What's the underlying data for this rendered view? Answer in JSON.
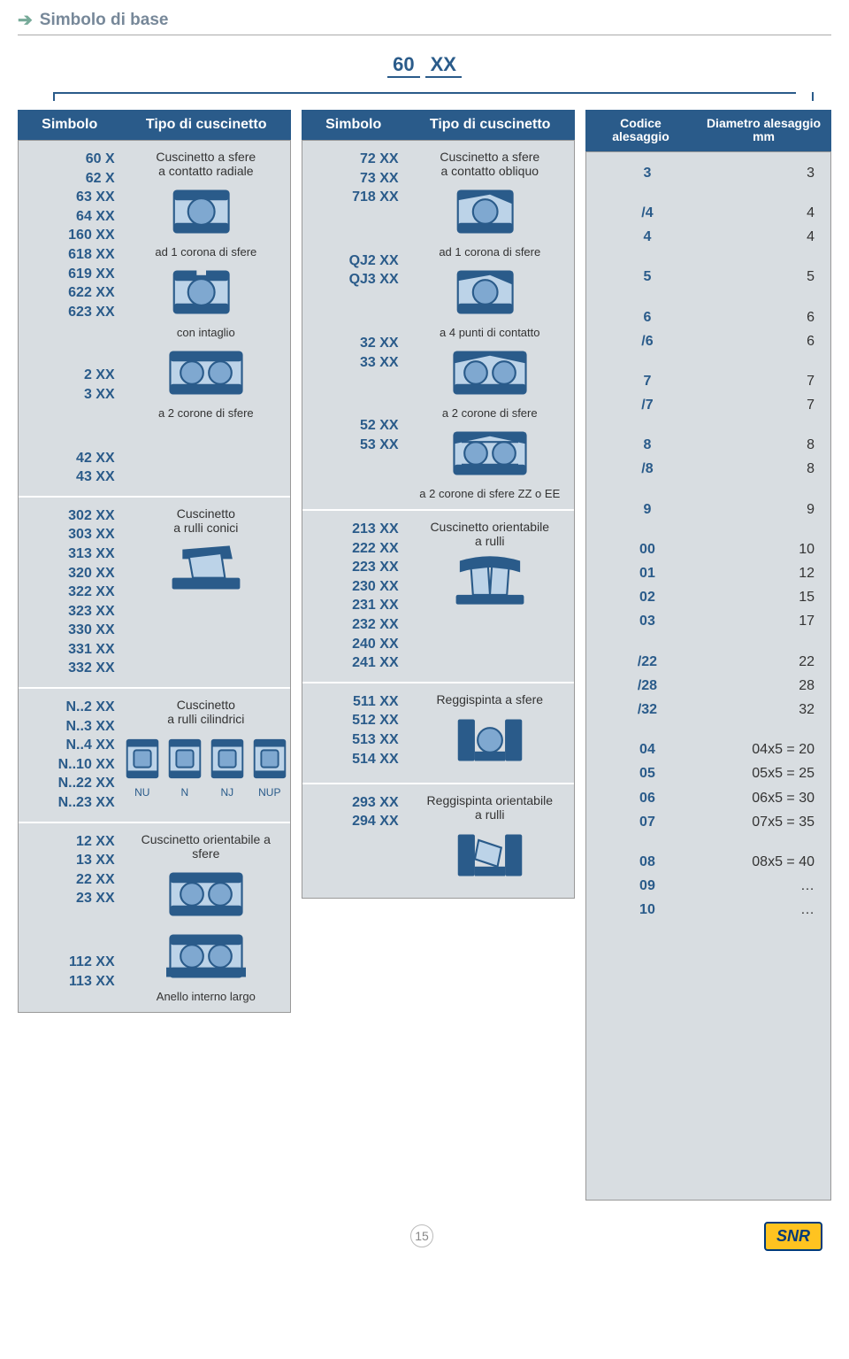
{
  "header": {
    "title": "Simbolo di base"
  },
  "topcode": {
    "a": "60",
    "b": "XX"
  },
  "col_headers": {
    "simbolo": "Simbolo",
    "tipo": "Tipo di cuscinetto",
    "codice": "Codice alesaggio",
    "diametro": "Diametro alesaggio mm"
  },
  "colors": {
    "header_bg": "#2a5b8a",
    "panel_bg": "#d8dde1",
    "sym_color": "#2a5b8a",
    "bearing_stroke": "#2a5b8a",
    "bearing_fill": "#bcd3e8"
  },
  "col1": [
    {
      "groups": [
        {
          "syms": [
            "60 X",
            "62 X",
            "63 XX",
            "64 XX",
            "160 XX",
            "618 XX",
            "619 XX",
            "622 XX",
            "623 XX"
          ],
          "title": "Cuscinetto a sfere\na contatto radiale",
          "icon": "ball1",
          "sub": "ad 1 corona di sfere"
        },
        {
          "syms": [
            "2 XX",
            "3 XX"
          ],
          "title": "",
          "icon": "ball1g",
          "sub": "con intaglio"
        },
        {
          "syms": [
            "42 XX",
            "43 XX"
          ],
          "title": "",
          "icon": "ball2",
          "sub": "a 2 corone di sfere"
        }
      ]
    },
    {
      "groups": [
        {
          "syms": [
            "302 XX",
            "303 XX",
            "313 XX",
            "320 XX",
            "322 XX",
            "323 XX",
            "330 XX",
            "331 XX",
            "332 XX"
          ],
          "title": "Cuscinetto\na rulli conici",
          "icon": "taper",
          "sub": ""
        }
      ]
    },
    {
      "groups": [
        {
          "syms": [
            "N..2 XX",
            "N..3 XX",
            "N..4 XX",
            "N..10 XX",
            "N..22 XX",
            "N..23 XX"
          ],
          "title": "Cuscinetto\na rulli cilindrici",
          "icon": "cylrow",
          "sub": "",
          "caps": [
            "NU",
            "N",
            "NJ",
            "NUP"
          ]
        }
      ]
    },
    {
      "groups": [
        {
          "syms": [
            "12 XX",
            "13 XX",
            "22 XX",
            "23 XX"
          ],
          "title": "Cuscinetto orientabile a sfere",
          "icon": "ball2",
          "sub": ""
        },
        {
          "syms": [
            "112 XX",
            "113 XX"
          ],
          "title": "",
          "icon": "ball2w",
          "sub": "Anello interno largo"
        }
      ]
    }
  ],
  "col2": [
    {
      "groups": [
        {
          "syms": [
            "72 XX",
            "73 XX",
            "718 XX"
          ],
          "title": "Cuscinetto a sfere\na contatto obliquo",
          "icon": "angular1",
          "sub": "ad 1 corona di sfere"
        },
        {
          "syms": [
            "QJ2 XX",
            "QJ3 XX"
          ],
          "title": "",
          "icon": "angular1",
          "sub": "a 4 punti di contatto"
        },
        {
          "syms": [
            "32 XX",
            "33 XX"
          ],
          "title": "",
          "icon": "angular2",
          "sub": "a 2 corone di sfere"
        },
        {
          "syms": [
            "52 XX",
            "53 XX"
          ],
          "title": "",
          "icon": "angular2s",
          "sub": "a 2 corone di sfere ZZ o EE"
        }
      ]
    },
    {
      "groups": [
        {
          "syms": [
            "213 XX",
            "222 XX",
            "223 XX",
            "230 XX",
            "231 XX",
            "232 XX",
            "240 XX",
            "241 XX"
          ],
          "title": "Cuscinetto orientabile\na rulli",
          "icon": "spherical",
          "sub": ""
        }
      ]
    },
    {
      "groups": [
        {
          "syms": [
            "511 XX",
            "512 XX",
            "513 XX",
            "514 XX"
          ],
          "title": "Reggispinta a sfere",
          "icon": "thrust",
          "sub": ""
        }
      ]
    },
    {
      "groups": [
        {
          "syms": [
            "293 XX",
            "294 XX"
          ],
          "title": "Reggispinta orientabile\na rulli",
          "icon": "thrustroller",
          "sub": ""
        }
      ]
    }
  ],
  "bore": {
    "rows": [
      {
        "c": "3",
        "d": "3"
      },
      {
        "gap": 1
      },
      {
        "c": "/4",
        "d": "4"
      },
      {
        "c": "4",
        "d": "4"
      },
      {
        "gap": 1
      },
      {
        "c": "5",
        "d": "5"
      },
      {
        "gap": 1
      },
      {
        "c": "6",
        "d": "6"
      },
      {
        "c": "/6",
        "d": "6"
      },
      {
        "gap": 1
      },
      {
        "c": "7",
        "d": "7"
      },
      {
        "c": "/7",
        "d": "7"
      },
      {
        "gap": 1
      },
      {
        "c": "8",
        "d": "8"
      },
      {
        "c": "/8",
        "d": "8"
      },
      {
        "gap": 1
      },
      {
        "c": "9",
        "d": "9"
      },
      {
        "gap": 1
      },
      {
        "c": "00",
        "d": "10"
      },
      {
        "c": "01",
        "d": "12"
      },
      {
        "c": "02",
        "d": "15"
      },
      {
        "c": "03",
        "d": "17"
      },
      {
        "gap": 1
      },
      {
        "c": "/22",
        "d": "22"
      },
      {
        "c": "/28",
        "d": "28"
      },
      {
        "c": "/32",
        "d": "32"
      },
      {
        "gap": 1
      },
      {
        "c": "04",
        "d": "04x5 = 20"
      },
      {
        "c": "05",
        "d": "05x5 = 25"
      },
      {
        "c": "06",
        "d": "06x5 = 30"
      },
      {
        "c": "07",
        "d": "07x5 = 35"
      },
      {
        "gap": 1
      },
      {
        "c": "08",
        "d": "08x5 = 40"
      },
      {
        "c": "09",
        "d": "…"
      },
      {
        "c": "10",
        "d": "…"
      }
    ]
  },
  "footer": {
    "page": "15",
    "logo": "SNR"
  }
}
